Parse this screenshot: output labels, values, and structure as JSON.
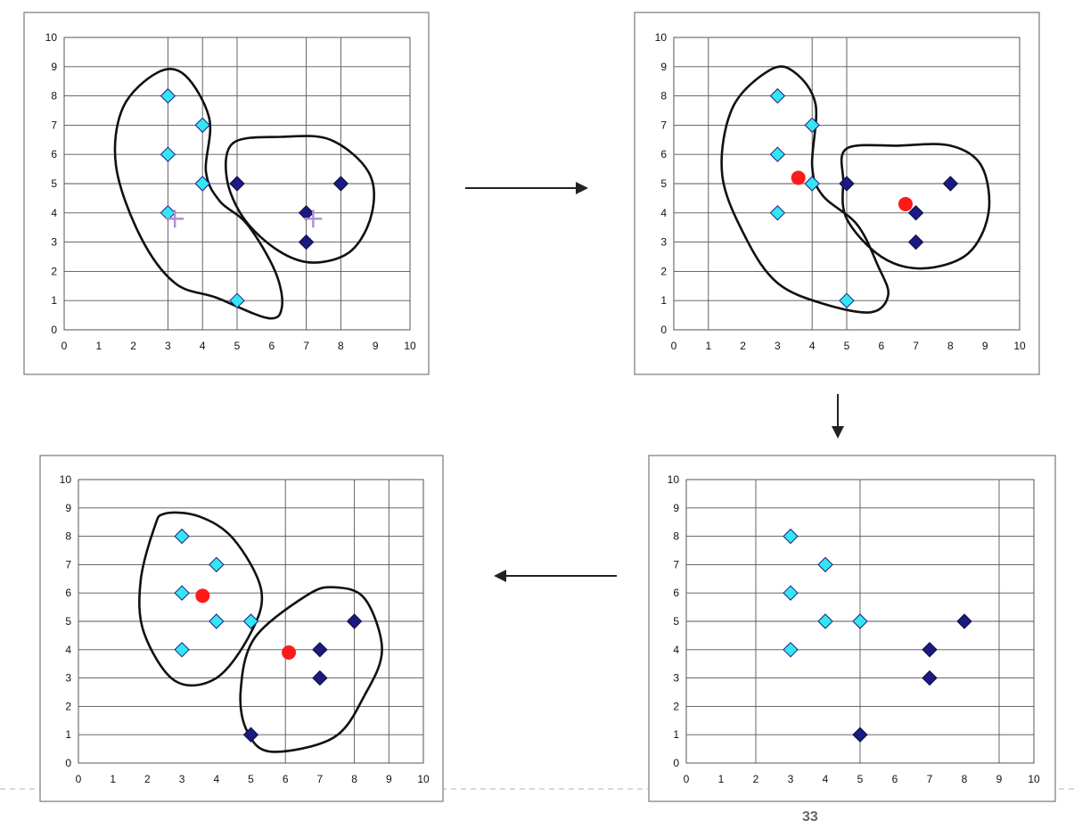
{
  "chart_data": [
    {
      "type": "scatter",
      "xlim": [
        0,
        10
      ],
      "ylim": [
        0,
        10
      ],
      "x_ticks": [
        "0",
        "1",
        "2",
        "3",
        "4",
        "5",
        "6",
        "7",
        "8",
        "9",
        "10"
      ],
      "y_ticks": [
        "0",
        "1",
        "2",
        "3",
        "4",
        "5",
        "6",
        "7",
        "8",
        "9",
        "10"
      ],
      "grid": true,
      "series": [
        {
          "points": [
            [
              3,
              8
            ],
            [
              4,
              7
            ],
            [
              3,
              6
            ],
            [
              4,
              5
            ],
            [
              3,
              4
            ],
            [
              5,
              1
            ]
          ],
          "marker": "diamond",
          "color": "#33e6f2"
        },
        {
          "points": [
            [
              5,
              5
            ],
            [
              7,
              4
            ],
            [
              7,
              3
            ],
            [
              8,
              5
            ]
          ],
          "marker": "diamond",
          "color": "#1a1a80"
        },
        {
          "points": [
            [
              3.2,
              3.8
            ],
            [
              7.2,
              3.8
            ]
          ],
          "marker": "plus",
          "color": "#b38fd6"
        }
      ]
    },
    {
      "type": "scatter",
      "xlim": [
        0,
        10
      ],
      "ylim": [
        0,
        10
      ],
      "x_ticks": [
        "0",
        "1",
        "2",
        "3",
        "4",
        "5",
        "6",
        "7",
        "8",
        "9",
        "10"
      ],
      "y_ticks": [
        "0",
        "1",
        "2",
        "3",
        "4",
        "5",
        "6",
        "7",
        "8",
        "9",
        "10"
      ],
      "grid": true,
      "series": [
        {
          "points": [
            [
              3,
              8
            ],
            [
              4,
              7
            ],
            [
              3,
              6
            ],
            [
              4,
              5
            ],
            [
              3,
              4
            ],
            [
              5,
              1
            ]
          ],
          "marker": "diamond",
          "color": "#33e6f2"
        },
        {
          "points": [
            [
              5,
              5
            ],
            [
              7,
              4
            ],
            [
              7,
              3
            ],
            [
              8,
              5
            ]
          ],
          "marker": "diamond",
          "color": "#1a1a80"
        },
        {
          "points": [
            [
              3.6,
              5.2
            ],
            [
              6.7,
              4.3
            ]
          ],
          "marker": "circle",
          "color": "#ff1a1a"
        }
      ]
    },
    {
      "type": "scatter",
      "xlim": [
        0,
        10
      ],
      "ylim": [
        0,
        10
      ],
      "x_ticks": [
        "0",
        "1",
        "2",
        "3",
        "4",
        "5",
        "6",
        "7",
        "8",
        "9",
        "10"
      ],
      "y_ticks": [
        "0",
        "1",
        "2",
        "3",
        "4",
        "5",
        "6",
        "7",
        "8",
        "9",
        "10"
      ],
      "grid": true,
      "series": [
        {
          "points": [
            [
              3,
              8
            ],
            [
              4,
              7
            ],
            [
              3,
              6
            ],
            [
              4,
              5
            ],
            [
              5,
              5
            ],
            [
              3,
              4
            ]
          ],
          "marker": "diamond",
          "color": "#33e6f2"
        },
        {
          "points": [
            [
              8,
              5
            ],
            [
              7,
              4
            ],
            [
              7,
              3
            ],
            [
              5,
              1
            ]
          ],
          "marker": "diamond",
          "color": "#1a1a80"
        }
      ]
    },
    {
      "type": "scatter",
      "xlim": [
        0,
        10
      ],
      "ylim": [
        0,
        10
      ],
      "x_ticks": [
        "0",
        "1",
        "2",
        "3",
        "4",
        "5",
        "6",
        "7",
        "8",
        "9",
        "10"
      ],
      "y_ticks": [
        "0",
        "1",
        "2",
        "3",
        "4",
        "5",
        "6",
        "7",
        "8",
        "9",
        "10"
      ],
      "grid": true,
      "series": [
        {
          "points": [
            [
              3,
              8
            ],
            [
              4,
              7
            ],
            [
              3,
              6
            ],
            [
              4,
              5
            ],
            [
              5,
              5
            ],
            [
              3,
              4
            ]
          ],
          "marker": "diamond",
          "color": "#33e6f2"
        },
        {
          "points": [
            [
              8,
              5
            ],
            [
              7,
              4
            ],
            [
              7,
              3
            ],
            [
              5,
              1
            ]
          ],
          "marker": "diamond",
          "color": "#1a1a80"
        },
        {
          "points": [
            [
              3.6,
              5.9
            ],
            [
              6.1,
              3.9
            ]
          ],
          "marker": "circle",
          "color": "#ff1a1a"
        }
      ]
    }
  ],
  "flow": {
    "arrows": [
      "right",
      "down",
      "left"
    ],
    "arrow_color": "#222222"
  },
  "footer": {
    "page_number_fragment": "33"
  }
}
